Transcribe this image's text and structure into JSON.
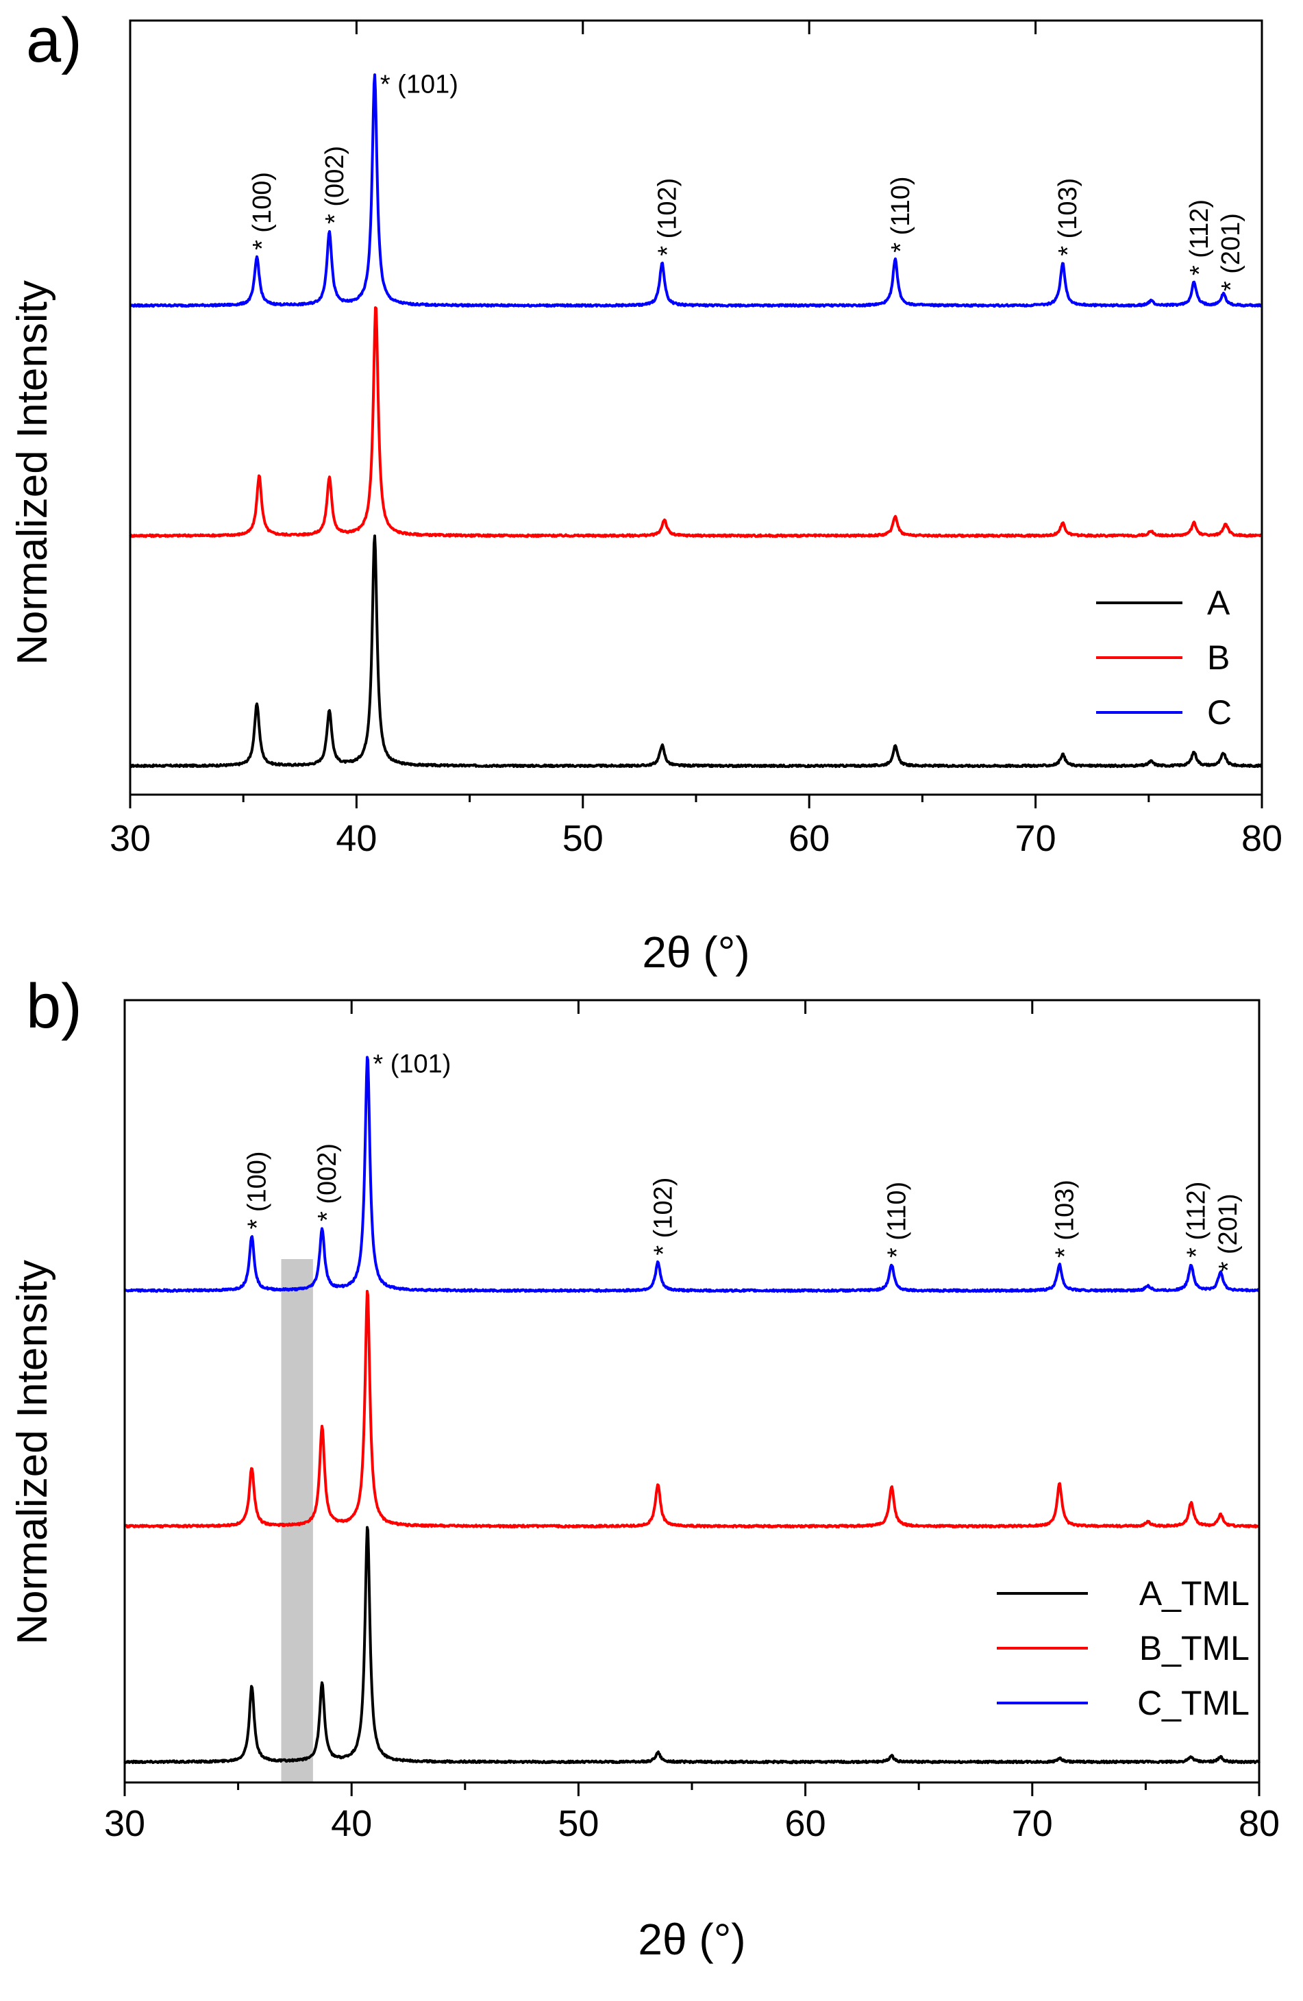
{
  "chart_data": [
    {
      "type": "line",
      "panel_label": "a)",
      "xlabel": "2θ (°)",
      "ylabel": "Normalized Intensity",
      "xlim": [
        30,
        80
      ],
      "xticks": [
        "30",
        "40",
        "50",
        "60",
        "70",
        "80"
      ],
      "legend_position": "right",
      "series": [
        {
          "name": "A",
          "color": "#000000",
          "offset": 0,
          "peaks": [
            [
              35.6,
              0.27
            ],
            [
              38.8,
              0.24
            ],
            [
              40.8,
              1.0
            ],
            [
              53.5,
              0.09
            ],
            [
              63.8,
              0.085
            ],
            [
              71.2,
              0.05
            ],
            [
              75.1,
              0.02
            ],
            [
              77.0,
              0.06
            ],
            [
              78.3,
              0.055
            ]
          ]
        },
        {
          "name": "B",
          "color": "#ff0000",
          "offset": 1,
          "peaks": [
            [
              35.7,
              0.26
            ],
            [
              38.8,
              0.25
            ],
            [
              40.85,
              1.0
            ],
            [
              53.6,
              0.07
            ],
            [
              63.8,
              0.085
            ],
            [
              71.2,
              0.055
            ],
            [
              75.1,
              0.02
            ],
            [
              77.0,
              0.055
            ],
            [
              78.4,
              0.05
            ]
          ]
        },
        {
          "name": "C",
          "color": "#0000ff",
          "offset": 2,
          "peaks": [
            [
              35.6,
              0.21
            ],
            [
              38.8,
              0.32
            ],
            [
              40.8,
              1.0
            ],
            [
              53.5,
              0.185
            ],
            [
              63.8,
              0.2
            ],
            [
              71.2,
              0.185
            ],
            [
              75.1,
              0.02
            ],
            [
              77.0,
              0.1
            ],
            [
              78.3,
              0.05
            ]
          ]
        }
      ],
      "annotations": [
        {
          "text": "* (100)",
          "x": 35.6,
          "series": "C"
        },
        {
          "text": "* (002)",
          "x": 38.8,
          "series": "C"
        },
        {
          "text": "* (101)",
          "x": 40.8,
          "series": "C",
          "horizontal": true
        },
        {
          "text": "* (102)",
          "x": 53.5,
          "series": "C"
        },
        {
          "text": "* (110)",
          "x": 63.8,
          "series": "C"
        },
        {
          "text": "* (103)",
          "x": 71.2,
          "series": "C"
        },
        {
          "text": "* (112)",
          "x": 77.0,
          "series": "C"
        },
        {
          "text": "* (201)",
          "x": 78.4,
          "series": "C"
        }
      ]
    },
    {
      "type": "line",
      "panel_label": "b)",
      "xlabel": "2θ (°)",
      "ylabel": "Normalized Intensity",
      "xlim": [
        30,
        80
      ],
      "xticks": [
        "30",
        "40",
        "50",
        "60",
        "70",
        "80"
      ],
      "legend_position": "right",
      "shaded_band": [
        36.9,
        38.3
      ],
      "series": [
        {
          "name": "A_TML",
          "color": "#000000",
          "offset": 0,
          "peaks": [
            [
              35.6,
              0.32
            ],
            [
              38.7,
              0.33
            ],
            [
              40.7,
              1.0
            ],
            [
              53.5,
              0.04
            ],
            [
              63.8,
              0.025
            ],
            [
              71.2,
              0.015
            ],
            [
              77.0,
              0.02
            ],
            [
              78.3,
              0.02
            ]
          ]
        },
        {
          "name": "B_TML",
          "color": "#ff0000",
          "offset": 1,
          "peaks": [
            [
              35.6,
              0.25
            ],
            [
              38.7,
              0.42
            ],
            [
              40.7,
              1.0
            ],
            [
              53.5,
              0.18
            ],
            [
              63.8,
              0.17
            ],
            [
              71.2,
              0.18
            ],
            [
              75.1,
              0.02
            ],
            [
              77.0,
              0.1
            ],
            [
              78.3,
              0.05
            ]
          ]
        },
        {
          "name": "C_TML",
          "color": "#0000ff",
          "offset": 2,
          "peaks": [
            [
              35.6,
              0.23
            ],
            [
              38.7,
              0.26
            ],
            [
              40.7,
              1.0
            ],
            [
              53.5,
              0.12
            ],
            [
              63.8,
              0.11
            ],
            [
              71.2,
              0.11
            ],
            [
              75.1,
              0.02
            ],
            [
              77.0,
              0.11
            ],
            [
              78.3,
              0.08
            ]
          ]
        }
      ],
      "annotations": [
        {
          "text": "* (100)",
          "x": 35.6,
          "series": "C_TML"
        },
        {
          "text": "* (002)",
          "x": 38.7,
          "series": "C_TML"
        },
        {
          "text": "* (101)",
          "x": 40.7,
          "series": "C_TML",
          "horizontal": true
        },
        {
          "text": "* (102)",
          "x": 53.5,
          "series": "C_TML"
        },
        {
          "text": "* (110)",
          "x": 63.8,
          "series": "C_TML"
        },
        {
          "text": "* (103)",
          "x": 71.2,
          "series": "C_TML"
        },
        {
          "text": "* (112)",
          "x": 77.0,
          "series": "C_TML"
        },
        {
          "text": "* (201)",
          "x": 78.4,
          "series": "C_TML"
        }
      ]
    }
  ]
}
